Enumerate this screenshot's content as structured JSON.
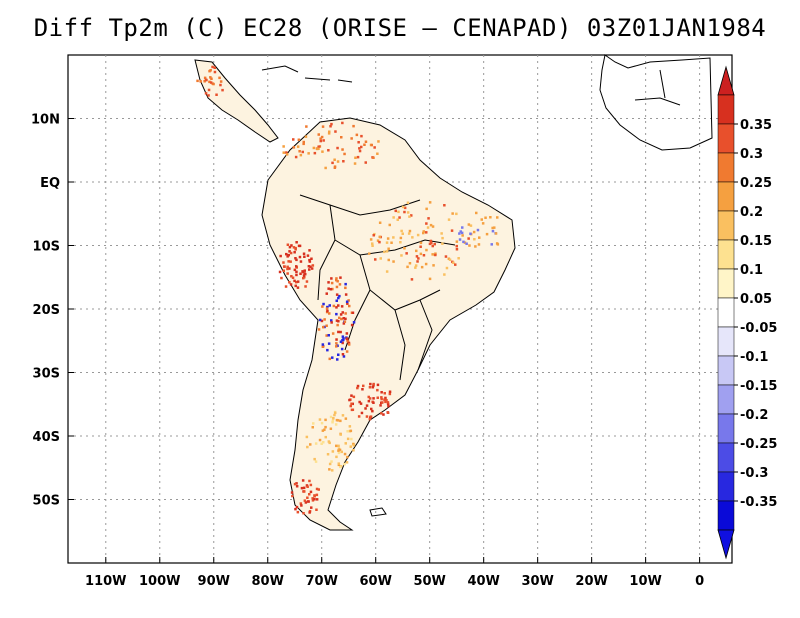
{
  "title": "Diff Tp2m (C) EC28 (ORISE – CENAPAD) 03Z01JAN1984",
  "map": {
    "region": "South America",
    "lon_range": [
      -117,
      6
    ],
    "lat_range": [
      -60,
      20
    ],
    "grid": true,
    "y_ticks": [
      "10N",
      "EQ",
      "10S",
      "20S",
      "30S",
      "40S",
      "50S"
    ],
    "x_ticks": [
      "110W",
      "100W",
      "90W",
      "80W",
      "70W",
      "60W",
      "50W",
      "40W",
      "30W",
      "20W",
      "10W",
      "0"
    ]
  },
  "colorbar": {
    "labels": [
      "0.35",
      "0.3",
      "0.25",
      "0.2",
      "0.15",
      "0.1",
      "0.05",
      "-0.05",
      "-0.1",
      "-0.15",
      "-0.2",
      "-0.25",
      "-0.3",
      "-0.35"
    ],
    "colors": [
      "#d7301f",
      "#e8502c",
      "#f07a30",
      "#f5a040",
      "#fac060",
      "#fde190",
      "#fff5c8",
      "#ffffff",
      "#e6e6fa",
      "#c8c8f5",
      "#a0a0f0",
      "#7878eb",
      "#4c4ce6",
      "#2828e0",
      "#0a0ad8"
    ],
    "top_arrow_color": "#cc2020",
    "bottom_arrow_color": "#1010e0"
  }
}
